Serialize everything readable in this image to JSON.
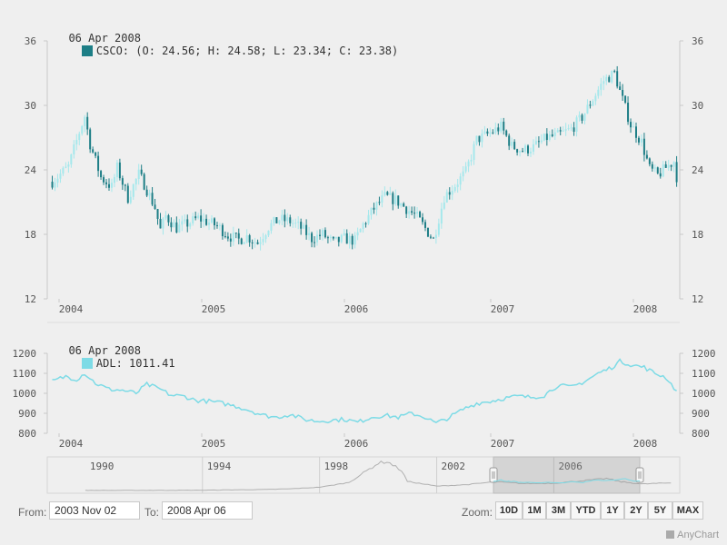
{
  "colors": {
    "up": "#a5e8ec",
    "down": "#1d7e86",
    "adl": "#7ddbe6",
    "nav": "#b0b0b0",
    "axis": "#c8c8c8",
    "text": "#555555"
  },
  "legend_top": {
    "date": "06 Apr 2008",
    "series": "CSCO",
    "text": "CSCO: (O: 24.56; H: 24.58; L: 23.34; C: 23.38)"
  },
  "legend_bottom": {
    "date": "06 Apr 2008",
    "series": "ADL",
    "text": "ADL: 1011.41"
  },
  "range": {
    "from_label": "From:",
    "from_value": "2003 Nov 02",
    "to_label": "To:",
    "to_value": "2008 Apr 06"
  },
  "zoom": {
    "label": "Zoom:",
    "buttons": [
      "10D",
      "1M",
      "3M",
      "YTD",
      "1Y",
      "2Y",
      "5Y",
      "MAX"
    ]
  },
  "credit": "AnyChart",
  "chart_data": [
    {
      "type": "candlestick",
      "series": [
        {
          "name": "CSCO"
        }
      ],
      "x_ticks": [
        "2004",
        "2005",
        "2006",
        "2007",
        "2008"
      ],
      "ylim": [
        12,
        36
      ],
      "y_ticks": [
        12,
        18,
        24,
        30,
        36
      ],
      "close_points": [
        [
          "2003-11-02",
          22.9
        ],
        [
          "2003-12-14",
          24.3
        ],
        [
          "2004-01-11",
          27.5
        ],
        [
          "2004-01-25",
          29.0
        ],
        [
          "2004-02-08",
          26.4
        ],
        [
          "2004-03-07",
          23.3
        ],
        [
          "2004-04-04",
          22.4
        ],
        [
          "2004-04-18",
          24.2
        ],
        [
          "2004-05-16",
          21.4
        ],
        [
          "2004-06-13",
          23.6
        ],
        [
          "2004-06-27",
          22.7
        ],
        [
          "2004-07-25",
          20.5
        ],
        [
          "2004-08-08",
          18.4
        ],
        [
          "2004-08-22",
          19.7
        ],
        [
          "2004-09-19",
          18.6
        ],
        [
          "2004-10-17",
          19.0
        ],
        [
          "2004-11-14",
          19.5
        ],
        [
          "2004-12-05",
          19.2
        ],
        [
          "2005-01-02",
          18.8
        ],
        [
          "2005-01-30",
          17.9
        ],
        [
          "2005-02-27",
          17.5
        ],
        [
          "2005-03-20",
          17.8
        ],
        [
          "2005-04-17",
          17.2
        ],
        [
          "2005-05-15",
          18.7
        ],
        [
          "2005-06-12",
          19.4
        ],
        [
          "2005-07-10",
          19.2
        ],
        [
          "2005-08-07",
          18.6
        ],
        [
          "2005-09-04",
          17.6
        ],
        [
          "2005-10-02",
          18.0
        ],
        [
          "2005-10-30",
          17.2
        ],
        [
          "2005-11-27",
          17.6
        ],
        [
          "2005-12-25",
          17.4
        ],
        [
          "2006-01-15",
          18.9
        ],
        [
          "2006-02-12",
          20.4
        ],
        [
          "2006-03-12",
          21.5
        ],
        [
          "2006-04-09",
          21.2
        ],
        [
          "2006-05-07",
          20.4
        ],
        [
          "2006-06-04",
          19.6
        ],
        [
          "2006-07-02",
          18.2
        ],
        [
          "2006-07-16",
          17.5
        ],
        [
          "2006-08-13",
          21.5
        ],
        [
          "2006-09-10",
          22.6
        ],
        [
          "2006-10-08",
          23.8
        ],
        [
          "2006-11-05",
          26.8
        ],
        [
          "2006-12-03",
          27.3
        ],
        [
          "2007-01-07",
          28.0
        ],
        [
          "2007-02-04",
          26.2
        ],
        [
          "2007-03-04",
          25.8
        ],
        [
          "2007-04-01",
          26.1
        ],
        [
          "2007-05-06",
          27.0
        ],
        [
          "2007-06-03",
          27.2
        ],
        [
          "2007-07-08",
          27.8
        ],
        [
          "2007-08-05",
          28.9
        ],
        [
          "2007-09-02",
          30.6
        ],
        [
          "2007-09-30",
          32.3
        ],
        [
          "2007-10-28",
          33.0
        ],
        [
          "2007-11-11",
          31.3
        ],
        [
          "2007-12-09",
          28.2
        ],
        [
          "2008-01-06",
          26.6
        ],
        [
          "2008-01-27",
          24.1
        ],
        [
          "2008-02-17",
          23.5
        ],
        [
          "2008-03-09",
          24.2
        ],
        [
          "2008-03-30",
          24.8
        ],
        [
          "2008-04-06",
          23.38
        ]
      ]
    },
    {
      "type": "line",
      "series": [
        {
          "name": "ADL"
        }
      ],
      "x_ticks": [
        "2004",
        "2005",
        "2006",
        "2007",
        "2008"
      ],
      "ylim": [
        800,
        1200
      ],
      "y_ticks": [
        800,
        900,
        1000,
        1100,
        1200
      ],
      "points": [
        [
          "2003-11-02",
          1060
        ],
        [
          "2003-12-07",
          1085
        ],
        [
          "2004-01-04",
          1070
        ],
        [
          "2004-01-25",
          1100
        ],
        [
          "2004-02-22",
          1050
        ],
        [
          "2004-03-28",
          1020
        ],
        [
          "2004-05-02",
          1015
        ],
        [
          "2004-06-06",
          1000
        ],
        [
          "2004-07-04",
          1045
        ],
        [
          "2004-08-08",
          1020
        ],
        [
          "2004-09-05",
          990
        ],
        [
          "2004-10-10",
          985
        ],
        [
          "2004-11-07",
          965
        ],
        [
          "2004-12-12",
          960
        ],
        [
          "2005-01-16",
          950
        ],
        [
          "2005-02-20",
          935
        ],
        [
          "2005-03-27",
          915
        ],
        [
          "2005-05-01",
          890
        ],
        [
          "2005-06-05",
          880
        ],
        [
          "2005-07-10",
          895
        ],
        [
          "2005-08-14",
          870
        ],
        [
          "2005-09-18",
          860
        ],
        [
          "2005-10-23",
          865
        ],
        [
          "2005-11-27",
          870
        ],
        [
          "2006-01-01",
          855
        ],
        [
          "2006-02-05",
          880
        ],
        [
          "2006-03-12",
          890
        ],
        [
          "2006-04-16",
          880
        ],
        [
          "2006-05-21",
          900
        ],
        [
          "2006-06-25",
          880
        ],
        [
          "2006-07-23",
          850
        ],
        [
          "2006-08-27",
          880
        ],
        [
          "2006-10-01",
          920
        ],
        [
          "2006-11-05",
          950
        ],
        [
          "2006-12-10",
          960
        ],
        [
          "2007-01-14",
          975
        ],
        [
          "2007-02-18",
          985
        ],
        [
          "2007-03-25",
          980
        ],
        [
          "2007-04-29",
          990
        ],
        [
          "2007-06-03",
          1040
        ],
        [
          "2007-07-08",
          1030
        ],
        [
          "2007-08-12",
          1060
        ],
        [
          "2007-09-16",
          1100
        ],
        [
          "2007-10-21",
          1130
        ],
        [
          "2007-11-11",
          1160
        ],
        [
          "2007-12-16",
          1140
        ],
        [
          "2008-01-13",
          1130
        ],
        [
          "2008-02-10",
          1100
        ],
        [
          "2008-03-09",
          1080
        ],
        [
          "2008-04-06",
          1011.41
        ]
      ]
    },
    {
      "type": "area",
      "series": [
        {
          "name": "navigator"
        }
      ],
      "x_ticks": [
        "1990",
        "1994",
        "1998",
        "2002",
        "2006"
      ],
      "selection": {
        "from": "2003 Nov 02",
        "to": "2008 Apr 06"
      },
      "points": [
        [
          1990,
          0.1
        ],
        [
          1992,
          0.3
        ],
        [
          1994,
          0.8
        ],
        [
          1996,
          2.5
        ],
        [
          1997,
          4.5
        ],
        [
          1998,
          9
        ],
        [
          1999,
          22
        ],
        [
          2000,
          75
        ],
        [
          2000.3,
          80
        ],
        [
          2000.8,
          55
        ],
        [
          2001,
          25
        ],
        [
          2002,
          12
        ],
        [
          2003,
          16
        ],
        [
          2004,
          24
        ],
        [
          2005,
          19
        ],
        [
          2006,
          20
        ],
        [
          2007,
          27
        ],
        [
          2007.8,
          33
        ],
        [
          2008.3,
          24
        ],
        [
          2009,
          18
        ],
        [
          2010,
          21
        ]
      ]
    }
  ]
}
